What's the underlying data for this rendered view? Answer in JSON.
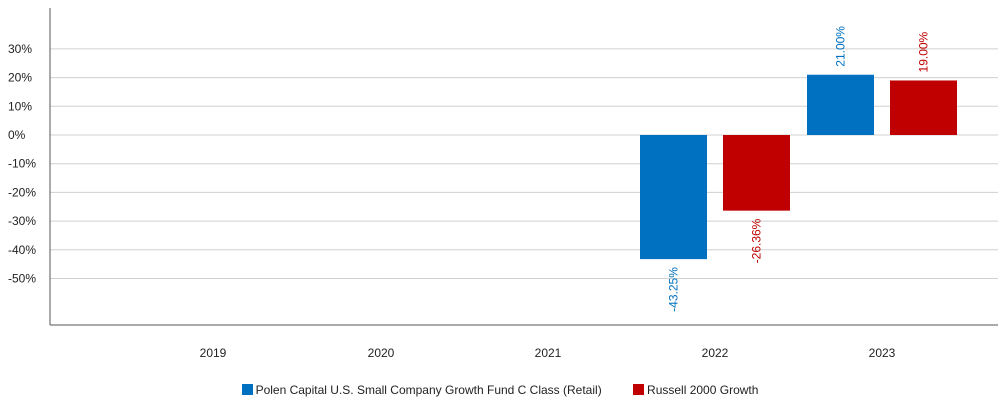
{
  "chart_data": {
    "type": "bar",
    "categories": [
      "2019",
      "2020",
      "2021",
      "2022",
      "2023"
    ],
    "series": [
      {
        "name": "Polen Capital U.S. Small Company Growth Fund C Class (Retail)",
        "color": "#0070c0",
        "values": [
          null,
          null,
          null,
          -43.25,
          21.0
        ],
        "labels": [
          null,
          null,
          null,
          "-43.25%",
          "21.00%"
        ]
      },
      {
        "name": "Russell 2000 Growth",
        "color": "#c00000",
        "values": [
          null,
          null,
          null,
          -26.36,
          19.0
        ],
        "labels": [
          null,
          null,
          null,
          "-26.36%",
          "19.00%"
        ]
      }
    ],
    "yticks": [
      30,
      20,
      10,
      0,
      -10,
      -20,
      -30,
      -40,
      -50
    ],
    "ytick_labels": [
      "30%",
      "20%",
      "10%",
      "0%",
      "-10%",
      "-20%",
      "-30%",
      "-40%",
      "-50%"
    ],
    "ylim": [
      -66,
      46
    ],
    "grid": true,
    "legend_position": "bottom"
  }
}
